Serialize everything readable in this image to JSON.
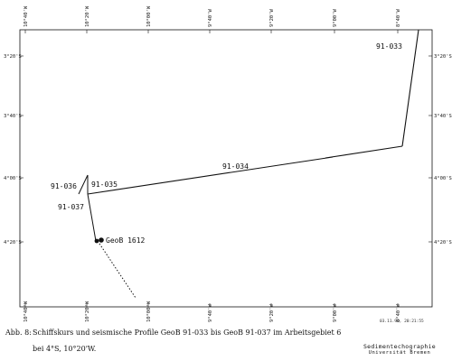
{
  "map": {
    "lon_ticks": [
      "10°40'W",
      "10°20'W",
      "10°00'W",
      "9°40'W",
      "9°20'W",
      "9°00'W",
      "8°40'W"
    ],
    "lat_ticks": [
      "3°20'S",
      "3°40'S",
      "4°00'S",
      "4°20'S"
    ],
    "profiles": [
      "91-033",
      "91-034",
      "91-035",
      "91-036",
      "91-037"
    ],
    "station": "GeoB 1612",
    "date_stamp": "03.11.96, 20:21:55"
  },
  "caption": {
    "label": "Abb. 8:",
    "line1": "Schiffskurs und seismische Profile GeoB 91-033 bis GeoB 91-037 im Arbeitsgebiet 6",
    "line2": "bei 4°S, 10°20'W."
  },
  "logo": {
    "line1": "Sedimentechographie",
    "line2": "Universität Bremen"
  }
}
